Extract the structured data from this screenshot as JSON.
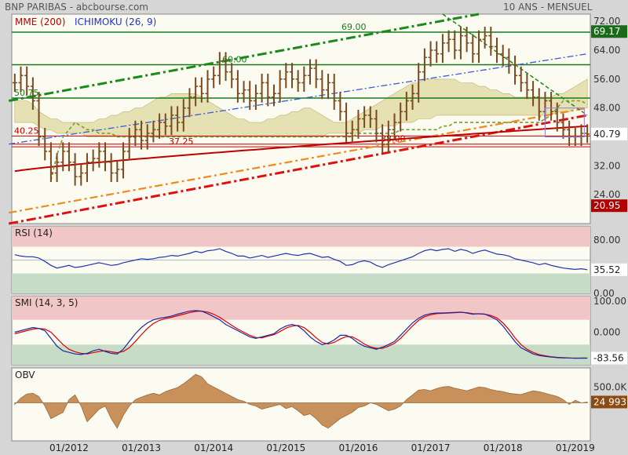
{
  "header": {
    "title": "BNP PARIBAS - abcbourse.com",
    "period": "10 ANS - MENSUEL"
  },
  "colors": {
    "bg": "#d6d6d6",
    "plot": "#fbfbf1",
    "candle": "#7a4a1e",
    "mme": "#c00000",
    "ichimoku_cloud": "#d9d08a",
    "green": "#1a7a1a",
    "red_zone": "#f0c6c6",
    "green_zone": "#c6dcc6",
    "obv": "#c8905a",
    "rsi": "#2233aa",
    "smi_k": "#1a2aa0",
    "smi_d": "#e00000"
  },
  "chart_data": [
    {
      "type": "ohlc",
      "name": "price",
      "legend": [
        "MME (200)",
        "ICHIMOKU (26, 9)"
      ],
      "ylim": [
        16,
        74
      ],
      "yticks": [
        24.0,
        32.0,
        40.0,
        48.0,
        56.0,
        64.0,
        72.0
      ],
      "ytick_labels": [
        "24.00",
        "32.00",
        "40.00",
        "48.00",
        "56.00",
        "64.00",
        "72.00"
      ],
      "x_ticks": [
        "01/2012",
        "01/2013",
        "01/2014",
        "01/2015",
        "01/2016",
        "01/2017",
        "01/2018",
        "01/2019"
      ],
      "x_tick_index": [
        9,
        21,
        33,
        45,
        57,
        69,
        81,
        93
      ],
      "n_bars": 96,
      "closes": [
        55,
        57,
        54,
        50,
        40,
        36,
        30,
        33,
        36,
        33,
        29,
        30,
        33,
        34,
        36,
        33,
        30,
        31,
        36,
        40,
        42,
        39,
        41,
        42,
        44,
        43,
        46,
        44,
        48,
        51,
        54,
        52,
        56,
        57,
        61,
        58,
        56,
        52,
        53,
        50,
        52,
        55,
        51,
        52,
        56,
        58,
        56,
        55,
        57,
        59,
        56,
        53,
        55,
        50,
        47,
        41,
        42,
        45,
        46,
        45,
        41,
        38,
        42,
        44,
        47,
        50,
        52,
        58,
        62,
        64,
        63,
        66,
        67,
        64,
        68,
        66,
        63,
        67,
        68,
        65,
        63,
        62,
        60,
        57,
        55,
        53,
        51,
        47,
        50,
        47,
        44,
        42,
        40,
        40,
        41,
        40.79
      ],
      "high_extra": 2.5,
      "low_extra": 2.5,
      "levels": [
        {
          "value": 69.0,
          "label": "69.00",
          "color": "#1a7a1a"
        },
        {
          "value": 60.0,
          "label": "60.00",
          "color": "#1a7a1a"
        },
        {
          "value": 50.75,
          "label": "50.75",
          "color": "#1a7a1a"
        },
        {
          "value": 40.25,
          "label": "40.25",
          "color": "#c00000"
        },
        {
          "value": 37.25,
          "label": "37.25",
          "color": "#c00000"
        },
        {
          "value": 38.0,
          "label": "38.00",
          "color": "#c00000"
        }
      ],
      "last_value": "40.79",
      "tag_top": "69.17",
      "tag_low": "20.95",
      "mme_start": 30.5,
      "mme_end": 43.0,
      "cloud_upper": [
        50,
        50,
        50,
        49,
        47,
        46,
        45,
        45,
        44,
        44,
        44,
        44,
        44,
        44,
        45,
        45,
        46,
        46,
        47,
        47,
        48,
        48,
        49,
        50,
        51,
        51,
        52,
        52,
        52,
        52,
        52,
        51,
        50,
        49,
        48,
        47,
        46,
        45,
        45,
        44,
        44,
        44,
        45,
        45,
        46,
        46,
        47,
        47,
        48,
        48,
        47,
        46,
        45,
        44,
        44,
        44,
        45,
        46,
        47,
        48,
        49,
        50,
        51,
        52,
        53,
        54,
        55,
        55,
        56,
        56,
        56,
        56,
        56,
        56,
        55,
        55,
        55,
        54,
        54,
        53,
        53,
        52,
        52,
        51,
        51,
        51,
        51,
        51,
        51,
        51,
        52,
        52,
        53,
        54,
        55,
        56
      ],
      "cloud_lower": [
        44,
        44,
        44,
        44,
        43,
        42,
        42,
        41,
        41,
        41,
        41,
        41,
        40,
        40,
        40,
        40,
        40,
        40,
        40,
        40,
        40,
        40,
        40,
        40,
        40,
        40,
        40,
        40,
        40,
        40,
        40,
        40,
        40,
        40,
        40,
        40,
        40,
        40,
        40,
        40,
        40,
        40,
        40,
        40,
        40,
        40,
        40,
        40,
        40,
        40,
        40,
        40,
        41,
        41,
        41,
        41,
        41,
        41,
        42,
        42,
        42,
        43,
        43,
        43,
        44,
        44,
        44,
        45,
        45,
        45,
        46,
        46,
        46,
        46,
        46,
        46,
        46,
        46,
        46,
        46,
        46,
        46,
        46,
        46,
        46,
        46,
        46,
        46,
        46,
        46,
        47,
        47,
        47,
        48,
        48,
        48
      ],
      "lagging": [
        null,
        null,
        null,
        null,
        null,
        null,
        28,
        35,
        40,
        42,
        44,
        43,
        42,
        42,
        41,
        41,
        41,
        40,
        40,
        40,
        40,
        40,
        40,
        40,
        40,
        40,
        40,
        40,
        40,
        40,
        40,
        40,
        40,
        40,
        40,
        40,
        40,
        40,
        40,
        40,
        40,
        40,
        40,
        40,
        40,
        40,
        40,
        40,
        40,
        40,
        40,
        40,
        40,
        40,
        40,
        40,
        40,
        41,
        41,
        41,
        41,
        41,
        41,
        41,
        42,
        42,
        42,
        42,
        42,
        42,
        42,
        43,
        43,
        44,
        44,
        44,
        44,
        44,
        44,
        44,
        44,
        44,
        44,
        44,
        44,
        44,
        44,
        44,
        45,
        46,
        48,
        50,
        50,
        50,
        50,
        49
      ]
    },
    {
      "type": "line",
      "name": "RSI (14)",
      "ylim": [
        0,
        100
      ],
      "yticks": [
        0,
        80
      ],
      "ytick_labels": [
        "0.00",
        "80.00"
      ],
      "zones": {
        "over": 70,
        "under": 30
      },
      "values": [
        58,
        56,
        55,
        55,
        53,
        48,
        42,
        38,
        40,
        42,
        39,
        40,
        42,
        44,
        46,
        44,
        42,
        43,
        46,
        48,
        50,
        52,
        51,
        52,
        54,
        55,
        57,
        56,
        58,
        60,
        63,
        61,
        64,
        65,
        67,
        63,
        60,
        56,
        56,
        53,
        55,
        57,
        54,
        56,
        58,
        60,
        58,
        57,
        59,
        60,
        57,
        54,
        55,
        51,
        48,
        42,
        43,
        47,
        49,
        47,
        42,
        39,
        43,
        46,
        49,
        52,
        55,
        60,
        64,
        66,
        64,
        66,
        67,
        63,
        66,
        64,
        60,
        63,
        65,
        62,
        59,
        58,
        56,
        52,
        50,
        48,
        46,
        43,
        45,
        42,
        40,
        38,
        37,
        36,
        37,
        35.52
      ],
      "last_value": "35.52"
    },
    {
      "type": "line",
      "name": "SMI (14, 3, 5)",
      "ylim": [
        -105,
        115
      ],
      "yticks": [
        100,
        0
      ],
      "ytick_labels": [
        "100.00",
        "0.000"
      ],
      "zones": {
        "over": 40,
        "under": -40
      },
      "k_values": [
        0,
        5,
        10,
        15,
        12,
        5,
        -20,
        -45,
        -60,
        -65,
        -70,
        -72,
        -68,
        -60,
        -55,
        -62,
        -68,
        -70,
        -55,
        -30,
        -5,
        15,
        30,
        40,
        45,
        48,
        52,
        58,
        63,
        68,
        70,
        68,
        60,
        50,
        40,
        25,
        15,
        5,
        -5,
        -15,
        -20,
        -15,
        -10,
        -5,
        10,
        20,
        25,
        20,
        5,
        -15,
        -30,
        -40,
        -35,
        -25,
        -10,
        -10,
        -20,
        -35,
        -45,
        -50,
        -55,
        -48,
        -40,
        -30,
        -10,
        10,
        30,
        45,
        55,
        60,
        62,
        62,
        63,
        64,
        65,
        62,
        58,
        60,
        58,
        50,
        40,
        20,
        -5,
        -30,
        -50,
        -60,
        -70,
        -75,
        -78,
        -80,
        -82,
        -83,
        -83,
        -84,
        -83.56,
        -83.56
      ],
      "d_values": [
        -5,
        0,
        5,
        10,
        12,
        10,
        0,
        -20,
        -40,
        -55,
        -63,
        -68,
        -70,
        -66,
        -62,
        -60,
        -63,
        -66,
        -62,
        -50,
        -30,
        -8,
        12,
        28,
        38,
        44,
        48,
        53,
        58,
        63,
        67,
        68,
        65,
        58,
        48,
        35,
        22,
        10,
        0,
        -10,
        -17,
        -18,
        -13,
        -8,
        2,
        13,
        20,
        22,
        15,
        0,
        -18,
        -33,
        -38,
        -33,
        -22,
        -14,
        -15,
        -25,
        -38,
        -47,
        -52,
        -52,
        -45,
        -36,
        -20,
        0,
        20,
        38,
        50,
        56,
        60,
        61,
        62,
        63,
        64,
        63,
        60,
        59,
        58,
        54,
        46,
        30,
        8,
        -18,
        -40,
        -55,
        -65,
        -72,
        -76,
        -79,
        -81,
        -82,
        -83,
        -83.5,
        -83.5,
        -83.5
      ],
      "last_value": "-83.56"
    },
    {
      "type": "area",
      "name": "OBV",
      "ylim": [
        -1200,
        1100
      ],
      "yticks": [
        500
      ],
      "ytick_labels": [
        "500.0K"
      ],
      "values": [
        -50,
        150,
        280,
        300,
        200,
        -100,
        -500,
        -400,
        -300,
        100,
        250,
        -100,
        -600,
        -400,
        -200,
        -100,
        -500,
        -800,
        -400,
        -100,
        100,
        180,
        250,
        300,
        250,
        350,
        420,
        480,
        600,
        750,
        900,
        820,
        600,
        500,
        400,
        300,
        200,
        100,
        50,
        -50,
        -100,
        -200,
        -150,
        -100,
        -50,
        -180,
        -120,
        -250,
        -400,
        -350,
        -500,
        -700,
        -800,
        -650,
        -500,
        -400,
        -300,
        -150,
        -100,
        0,
        -50,
        -150,
        -250,
        -200,
        -100,
        100,
        250,
        400,
        420,
        380,
        450,
        500,
        520,
        460,
        420,
        380,
        440,
        500,
        480,
        420,
        380,
        350,
        300,
        280,
        260,
        320,
        380,
        350,
        300,
        250,
        200,
        100,
        -50,
        80,
        0,
        24.993
      ],
      "last_value": "24 993"
    }
  ]
}
